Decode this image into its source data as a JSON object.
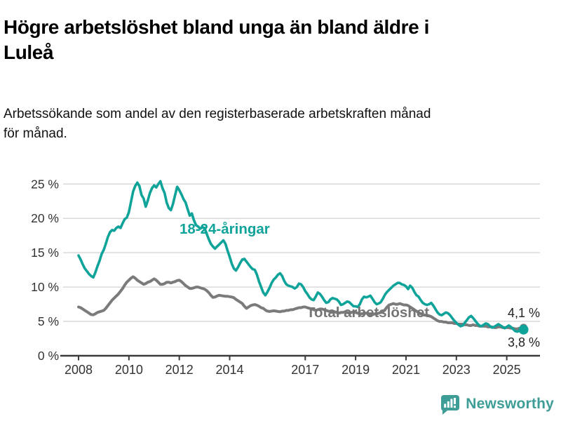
{
  "title": "Högre arbetslöshet bland unga än bland äldre i\nLuleå",
  "subtitle": "Arbetssökande som andel av den registerbaserade arbetskraften månad\nför månad.",
  "branding": {
    "logo_text": "Newsworthy",
    "logo_icon": "newsworthy-speech-bubble-bar-chart-icon",
    "logo_color": "#3e9d97"
  },
  "colors": {
    "youth_line": "#0fa39a",
    "total_line": "#7b7b7b",
    "grid": "#d9d9d9",
    "axis": "#3a3a3a",
    "tick_text": "#333333",
    "end_label_text": "#222222",
    "total_label_text": "#757575"
  },
  "chart_data": {
    "type": "line",
    "title": "Högre arbetslöshet bland unga än bland äldre i Luleå",
    "subtitle": "Arbetssökande som andel av den registerbaserade arbetskraften månad för månad.",
    "x_unit": "month",
    "x_start": "2008-01",
    "x_end": "2025-09",
    "x_tick_years": [
      2008,
      2010,
      2012,
      2014,
      2017,
      2019,
      2021,
      2023,
      2025
    ],
    "x_tick_labels": [
      "2008",
      "2010",
      "2012",
      "2014",
      "2017",
      "2019",
      "2021",
      "2023",
      "2025"
    ],
    "y_ticks": [
      0,
      5,
      10,
      15,
      20,
      25
    ],
    "y_tick_labels": [
      "0 %",
      "5 %",
      "10 %",
      "15 %",
      "20 %",
      "25 %"
    ],
    "ylim": [
      0,
      27
    ],
    "grid": "horizontal",
    "legend_position": "inline-labels",
    "series": [
      {
        "name": "Total arbetslöshet",
        "role": "total",
        "color": "#7b7b7b",
        "end_label": "4,1 %",
        "end_value": 4.1,
        "values": [
          7.1,
          7.0,
          6.8,
          6.6,
          6.4,
          6.2,
          6.0,
          5.95,
          6.1,
          6.3,
          6.4,
          6.5,
          6.6,
          6.9,
          7.3,
          7.7,
          8.1,
          8.4,
          8.7,
          9.0,
          9.4,
          9.8,
          10.3,
          10.7,
          11.0,
          11.3,
          11.5,
          11.3,
          11.0,
          10.8,
          10.6,
          10.4,
          10.5,
          10.7,
          10.8,
          11.0,
          11.2,
          11.0,
          10.7,
          10.4,
          10.4,
          10.5,
          10.7,
          10.7,
          10.6,
          10.7,
          10.8,
          10.95,
          11.0,
          10.8,
          10.5,
          10.2,
          10.0,
          9.8,
          9.8,
          9.9,
          10.0,
          10.0,
          9.9,
          9.8,
          9.7,
          9.5,
          9.2,
          8.8,
          8.5,
          8.55,
          8.7,
          8.8,
          8.75,
          8.7,
          8.65,
          8.65,
          8.6,
          8.55,
          8.45,
          8.2,
          8.0,
          7.8,
          7.6,
          7.2,
          6.9,
          7.1,
          7.3,
          7.4,
          7.45,
          7.35,
          7.2,
          7.0,
          6.9,
          6.65,
          6.5,
          6.45,
          6.5,
          6.55,
          6.5,
          6.45,
          6.4,
          6.5,
          6.5,
          6.6,
          6.6,
          6.7,
          6.7,
          6.8,
          6.9,
          7.0,
          7.0,
          7.1,
          7.1,
          7.0,
          6.9,
          6.8,
          6.7,
          6.6,
          6.7,
          6.8,
          6.8,
          6.7,
          6.6,
          6.5,
          6.4,
          6.5,
          6.4,
          6.3,
          6.2,
          6.3,
          6.3,
          6.4,
          6.3,
          6.2,
          6.3,
          6.4,
          6.3,
          6.2,
          6.1,
          6.1,
          6.2,
          6.2,
          6.1,
          6.0,
          6.0,
          6.1,
          6.1,
          6.2,
          6.3,
          6.4,
          6.7,
          7.1,
          7.4,
          7.5,
          7.6,
          7.5,
          7.5,
          7.6,
          7.5,
          7.4,
          7.4,
          7.3,
          7.1,
          6.9,
          6.7,
          6.5,
          6.3,
          6.1,
          6.0,
          5.9,
          5.9,
          5.8,
          5.7,
          5.5,
          5.3,
          5.1,
          5.0,
          5.0,
          4.9,
          4.9,
          4.8,
          4.8,
          4.8,
          4.7,
          4.7,
          4.6,
          4.6,
          4.6,
          4.5,
          4.5,
          4.4,
          4.4,
          4.5,
          4.4,
          4.4,
          4.3,
          4.3,
          4.3,
          4.3,
          4.2,
          4.2,
          4.2,
          4.1,
          4.1,
          4.2,
          4.2,
          4.1,
          4.1,
          4.1,
          4.1,
          4.0,
          4.0,
          3.9,
          3.9,
          4.0,
          4.1,
          4.1
        ]
      },
      {
        "name": "18-24-åringar",
        "role": "youth",
        "color": "#0fa39a",
        "end_label": "3,8 %",
        "end_value": 3.8,
        "values": [
          14.6,
          14.0,
          13.3,
          12.7,
          12.3,
          11.9,
          11.6,
          11.4,
          12.1,
          13.0,
          13.8,
          14.8,
          15.4,
          16.3,
          17.3,
          18.0,
          18.3,
          18.2,
          18.6,
          18.8,
          18.6,
          19.3,
          19.9,
          20.1,
          20.9,
          22.4,
          23.9,
          24.7,
          25.2,
          24.7,
          23.4,
          22.9,
          21.7,
          22.6,
          23.7,
          24.4,
          24.8,
          24.5,
          25.0,
          25.4,
          24.4,
          23.7,
          22.3,
          21.5,
          21.2,
          22.1,
          23.4,
          24.6,
          24.1,
          23.5,
          22.8,
          22.3,
          21.3,
          20.4,
          20.7,
          19.7,
          19.0,
          18.8,
          18.5,
          18.7,
          18.6,
          17.8,
          17.0,
          16.3,
          15.9,
          15.6,
          15.9,
          16.2,
          16.5,
          16.8,
          16.3,
          15.3,
          14.4,
          13.4,
          12.7,
          12.4,
          12.9,
          13.5,
          14.0,
          14.1,
          13.7,
          13.3,
          12.9,
          12.6,
          12.5,
          11.8,
          10.8,
          10.0,
          9.2,
          8.8,
          9.3,
          9.9,
          10.6,
          11.1,
          11.4,
          11.8,
          12.0,
          11.6,
          10.9,
          10.4,
          10.2,
          10.1,
          10.0,
          9.8,
          10.0,
          10.5,
          10.4,
          10.0,
          9.4,
          9.0,
          8.5,
          8.2,
          8.1,
          8.6,
          9.2,
          9.0,
          8.6,
          8.1,
          7.7,
          7.8,
          8.2,
          8.4,
          8.3,
          8.2,
          7.9,
          7.4,
          7.5,
          7.7,
          7.9,
          7.8,
          7.5,
          7.2,
          7.2,
          7.1,
          7.5,
          8.2,
          8.6,
          8.5,
          8.6,
          8.75,
          8.3,
          7.8,
          7.5,
          7.6,
          7.8,
          8.3,
          8.9,
          9.3,
          9.6,
          9.9,
          10.2,
          10.4,
          10.6,
          10.6,
          10.4,
          10.3,
          10.1,
          9.7,
          10.2,
          9.9,
          9.3,
          8.8,
          8.6,
          8.1,
          7.7,
          7.5,
          7.4,
          7.5,
          7.7,
          7.3,
          6.8,
          6.3,
          6.0,
          5.9,
          6.1,
          6.3,
          6.2,
          5.9,
          5.5,
          5.1,
          4.8,
          4.5,
          4.3,
          4.4,
          4.8,
          5.2,
          5.6,
          5.8,
          5.5,
          5.1,
          4.7,
          4.4,
          4.3,
          4.5,
          4.7,
          4.6,
          4.3,
          4.1,
          4.2,
          4.4,
          4.6,
          4.4,
          4.2,
          4.0,
          4.2,
          4.4,
          4.2,
          3.9,
          3.6,
          3.5,
          3.6,
          3.9,
          3.8
        ]
      }
    ],
    "annotations": {
      "youth_series_label": "18-24-åringar",
      "total_series_label": "Total arbetslöshet",
      "end_label_upper": "4,1 %",
      "end_label_lower": "3,8 %"
    }
  }
}
